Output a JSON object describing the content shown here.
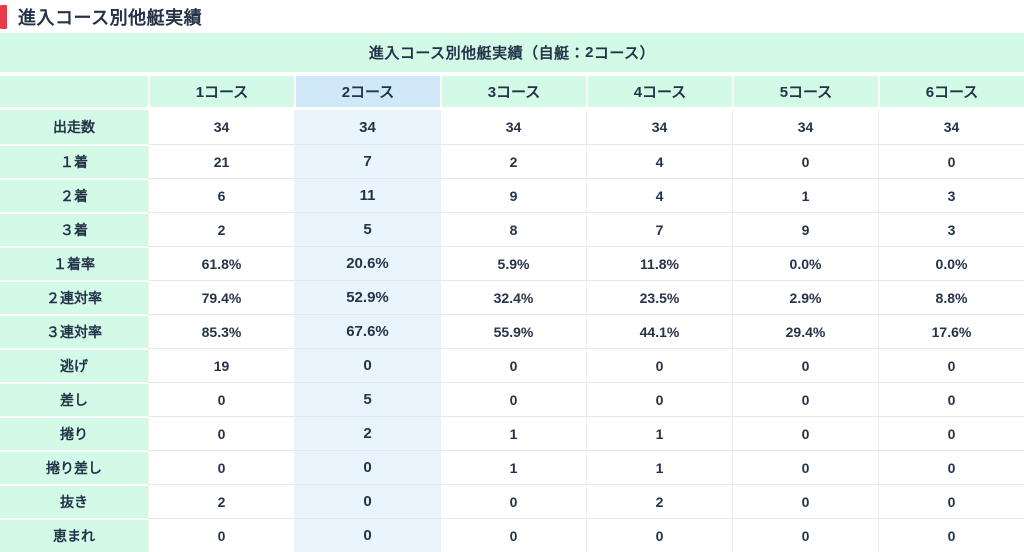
{
  "page": {
    "title": "進入コース別他艇実績"
  },
  "banner": {
    "title_prefix": "進入コース別他艇実績（自艇：",
    "self_course": "2",
    "title_suffix": "コース）"
  },
  "table": {
    "columns": [
      {
        "key": "course1",
        "label": "1コース",
        "highlight": false
      },
      {
        "key": "course2",
        "label": "2コース",
        "highlight": true
      },
      {
        "key": "course3",
        "label": "3コース",
        "highlight": false
      },
      {
        "key": "course4",
        "label": "4コース",
        "highlight": false
      },
      {
        "key": "course5",
        "label": "5コース",
        "highlight": false
      },
      {
        "key": "course6",
        "label": "6コース",
        "highlight": false
      }
    ],
    "rows": [
      {
        "key": "starts",
        "label": "出走数",
        "values": [
          "34",
          "34",
          "34",
          "34",
          "34",
          "34"
        ]
      },
      {
        "key": "first-place",
        "label": "１着",
        "values": [
          "21",
          "7",
          "2",
          "4",
          "0",
          "0"
        ]
      },
      {
        "key": "second-place",
        "label": "２着",
        "values": [
          "6",
          "11",
          "9",
          "4",
          "1",
          "3"
        ]
      },
      {
        "key": "third-place",
        "label": "３着",
        "values": [
          "2",
          "5",
          "8",
          "7",
          "9",
          "3"
        ]
      },
      {
        "key": "win-rate",
        "label": "１着率",
        "values": [
          "61.8%",
          "20.6%",
          "5.9%",
          "11.8%",
          "0.0%",
          "0.0%"
        ]
      },
      {
        "key": "top2-rate",
        "label": "２連対率",
        "values": [
          "79.4%",
          "52.9%",
          "32.4%",
          "23.5%",
          "2.9%",
          "8.8%"
        ]
      },
      {
        "key": "top3-rate",
        "label": "３連対率",
        "values": [
          "85.3%",
          "67.6%",
          "55.9%",
          "44.1%",
          "29.4%",
          "17.6%"
        ]
      },
      {
        "key": "nige",
        "label": "逃げ",
        "values": [
          "19",
          "0",
          "0",
          "0",
          "0",
          "0"
        ]
      },
      {
        "key": "sashi",
        "label": "差し",
        "values": [
          "0",
          "5",
          "0",
          "0",
          "0",
          "0"
        ]
      },
      {
        "key": "makuri",
        "label": "捲り",
        "values": [
          "0",
          "2",
          "1",
          "1",
          "0",
          "0"
        ]
      },
      {
        "key": "makurizashi",
        "label": "捲り差し",
        "values": [
          "0",
          "0",
          "1",
          "1",
          "0",
          "0"
        ]
      },
      {
        "key": "nuki",
        "label": "抜き",
        "values": [
          "2",
          "0",
          "0",
          "2",
          "0",
          "0"
        ]
      },
      {
        "key": "megumare",
        "label": "恵まれ",
        "values": [
          "0",
          "0",
          "0",
          "0",
          "0",
          "0"
        ]
      }
    ]
  },
  "colors": {
    "accent-red": "#e83946",
    "mint": "#d2fae7",
    "highlight-header": "#cfe9f8",
    "highlight-cell": "#e9f4fc",
    "text-dark": "#253349",
    "grid-line": "#e7e7e7"
  }
}
